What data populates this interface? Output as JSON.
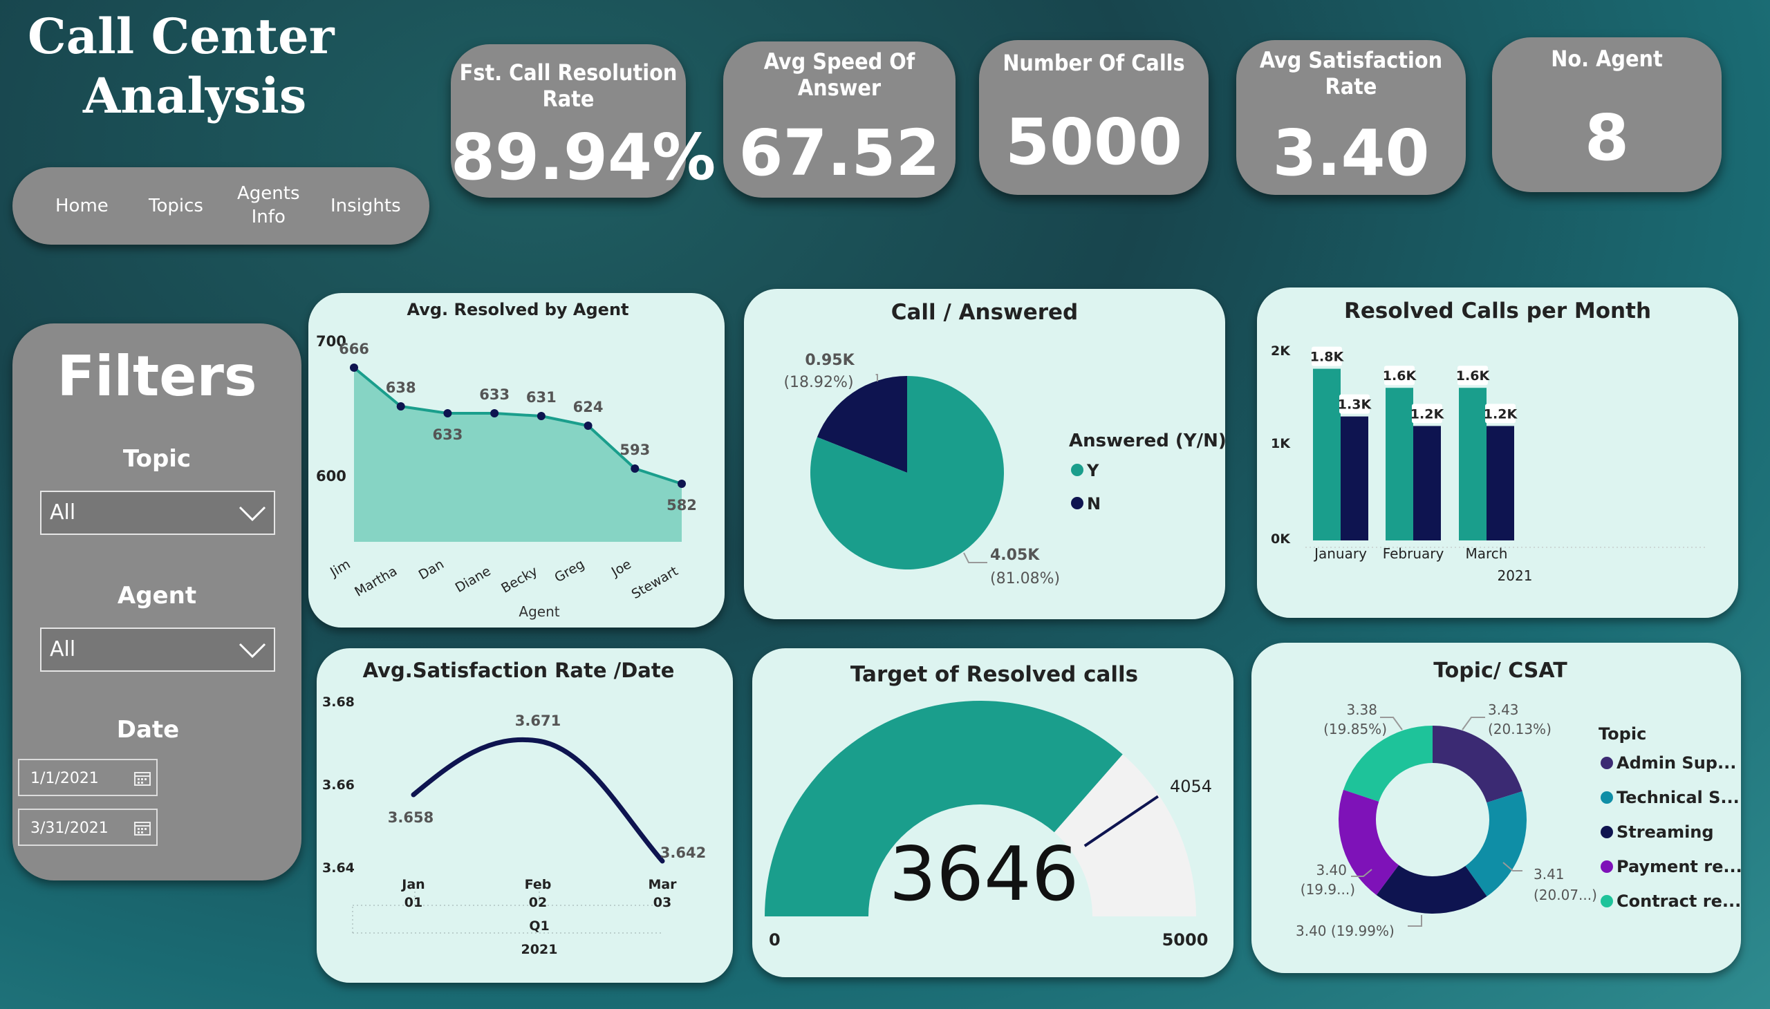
{
  "title": {
    "line1": "Call Center",
    "line2": "Analysis"
  },
  "nav": {
    "home": "Home",
    "topics": "Topics",
    "agents_info_1": "Agents",
    "agents_info_2": "Info",
    "insights": "Insights"
  },
  "kpis": {
    "fcr": {
      "label1": "Fst. Call Resolution",
      "label2": "Rate",
      "value": "89.94%"
    },
    "asa": {
      "label1": "Avg Speed Of",
      "label2": "Answer",
      "value": "67.52"
    },
    "calls": {
      "label1": "Number Of Calls",
      "value": "5000"
    },
    "csat": {
      "label1": "Avg Satisfaction",
      "label2": "Rate",
      "value": "3.40"
    },
    "agents": {
      "label1": "No. Agent",
      "value": "8"
    }
  },
  "filters": {
    "title": "Filters",
    "topic_label": "Topic",
    "topic_value": "All",
    "agent_label": "Agent",
    "agent_value": "All",
    "date_label": "Date",
    "date_start": "1/1/2021",
    "date_end": "3/31/2021"
  },
  "colors": {
    "teal": "#1a9e8c",
    "navy": "#0e1450",
    "area": "#86d4c4",
    "purple1": "#3b2a73",
    "cyan": "#0f8ea6",
    "violet": "#7e12b8",
    "mint": "#1ec39a"
  },
  "chart_data": [
    {
      "type": "area",
      "title": "Avg. Resolved by Agent",
      "xlabel": "Agent",
      "categories": [
        "Jim",
        "Martha",
        "Dan",
        "Diane",
        "Becky",
        "Greg",
        "Joe",
        "Stewart"
      ],
      "values": [
        666,
        638,
        633,
        633,
        631,
        624,
        593,
        582
      ],
      "ytick_labels": [
        "700",
        "600"
      ],
      "ylim": [
        540,
        700
      ]
    },
    {
      "type": "pie",
      "title": "Call / Answered",
      "legend_title": "Answered (Y/N)",
      "labels": [
        "Y",
        "N"
      ],
      "values": [
        4050,
        950
      ],
      "value_labels": [
        "4.05K",
        "0.95K"
      ],
      "percent_labels": [
        "(81.08%)",
        "(18.92%)"
      ]
    },
    {
      "type": "bar",
      "title": "Resolved Calls per Month",
      "categories": [
        "January",
        "February",
        "March"
      ],
      "axis_sub_label": "2021",
      "series": [
        {
          "values": [
            1800,
            1600,
            1600
          ],
          "labels": [
            "1.8K",
            "1.6K",
            "1.6K"
          ]
        },
        {
          "values": [
            1300,
            1200,
            1200
          ],
          "labels": [
            "1.3K",
            "1.2K",
            "1.2K"
          ]
        }
      ],
      "ytick_labels": [
        "2K",
        "1K",
        "0K"
      ],
      "ylim": [
        0,
        2000
      ]
    },
    {
      "type": "line",
      "title": "Avg.Satisfaction Rate /Date",
      "x_labels": [
        {
          "m": "Jan",
          "d": "01"
        },
        {
          "m": "Feb",
          "d": "02"
        },
        {
          "m": "Mar",
          "d": "03"
        }
      ],
      "x_group_labels": [
        "Q1",
        "2021"
      ],
      "values": [
        3.658,
        3.671,
        3.642
      ],
      "value_labels": [
        "3.658",
        "3.671",
        "3.642"
      ],
      "ytick_labels": [
        "3.68",
        "3.66",
        "3.64"
      ],
      "ylim": [
        3.64,
        3.68
      ]
    },
    {
      "type": "gauge",
      "title": "Target of Resolved calls",
      "value": 3646,
      "value_label": "3646",
      "target": 4054,
      "target_label": "4054",
      "min_label": "0",
      "max_label": "5000",
      "min": 0,
      "max": 5000
    },
    {
      "type": "pie",
      "title": "Topic/ CSAT",
      "legend_title": "Topic",
      "labels": [
        "Admin Sup...",
        "Technical S...",
        "Streaming",
        "Payment re...",
        "Contract re..."
      ],
      "values": [
        20.13,
        20.07,
        19.99,
        19.96,
        19.85
      ],
      "slice_labels": [
        {
          "v": "3.43",
          "p": "(20.13%)"
        },
        {
          "v": "3.41",
          "p": "(20.07...)"
        },
        {
          "v": "3.40 (19.99%)",
          "p": ""
        },
        {
          "v": "3.40",
          "p": "(19.9...)"
        },
        {
          "v": "3.38",
          "p": "(19.85%)"
        }
      ]
    }
  ]
}
